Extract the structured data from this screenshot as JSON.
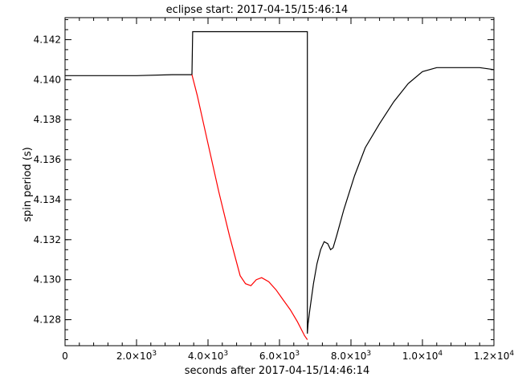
{
  "chart_data": {
    "type": "line",
    "title": "eclipse start: 2017-04-15/15:46:14",
    "xlabel": "seconds after 2017-04-15/14:46:14",
    "ylabel": "spin period (s)",
    "xlim": [
      0,
      12000
    ],
    "ylim": [
      4.1267,
      4.1431
    ],
    "grid": false,
    "x_ticks": [
      {
        "value": 0,
        "label": "0",
        "exp": ""
      },
      {
        "value": 2000,
        "label": "2.0×10",
        "exp": "3"
      },
      {
        "value": 4000,
        "label": "4.0×10",
        "exp": "3"
      },
      {
        "value": 6000,
        "label": "6.0×10",
        "exp": "3"
      },
      {
        "value": 8000,
        "label": "8.0×10",
        "exp": "3"
      },
      {
        "value": 10000,
        "label": "1.0×10",
        "exp": "4"
      },
      {
        "value": 12000,
        "label": "1.2×10",
        "exp": "4"
      }
    ],
    "y_ticks": [
      {
        "value": 4.128,
        "label": "4.128"
      },
      {
        "value": 4.13,
        "label": "4.130"
      },
      {
        "value": 4.132,
        "label": "4.132"
      },
      {
        "value": 4.134,
        "label": "4.134"
      },
      {
        "value": 4.136,
        "label": "4.136"
      },
      {
        "value": 4.138,
        "label": "4.138"
      },
      {
        "value": 4.14,
        "label": "4.140"
      },
      {
        "value": 4.142,
        "label": "4.142"
      }
    ],
    "series": [
      {
        "color": "#000000",
        "points": [
          [
            0,
            4.1402
          ],
          [
            1000,
            4.1402
          ],
          [
            2000,
            4.1402
          ],
          [
            3000,
            4.14025
          ],
          [
            3550,
            4.14025
          ],
          [
            3570,
            4.1424
          ],
          [
            6780,
            4.1424
          ],
          [
            6780,
            4.1273
          ],
          [
            6800,
            4.1278
          ],
          [
            6850,
            4.1285
          ],
          [
            6950,
            4.1298
          ],
          [
            7050,
            4.1308
          ],
          [
            7150,
            4.1315
          ],
          [
            7250,
            4.1319
          ],
          [
            7350,
            4.1318
          ],
          [
            7430,
            4.1315
          ],
          [
            7500,
            4.1316
          ],
          [
            7600,
            4.1322
          ],
          [
            7800,
            4.1335
          ],
          [
            8100,
            4.1352
          ],
          [
            8400,
            4.1366
          ],
          [
            8800,
            4.1378
          ],
          [
            9200,
            4.1389
          ],
          [
            9600,
            4.1398
          ],
          [
            10000,
            4.1404
          ],
          [
            10400,
            4.1406
          ],
          [
            10800,
            4.1406
          ],
          [
            11200,
            4.1406
          ],
          [
            11600,
            4.1406
          ],
          [
            12000,
            4.1405
          ]
        ]
      },
      {
        "color": "#ff0000",
        "points": [
          [
            3550,
            4.14025
          ],
          [
            3700,
            4.1392
          ],
          [
            4000,
            4.1368
          ],
          [
            4300,
            4.1344
          ],
          [
            4600,
            4.1322
          ],
          [
            4900,
            4.1302
          ],
          [
            5050,
            4.1298
          ],
          [
            5200,
            4.1297
          ],
          [
            5350,
            4.13
          ],
          [
            5500,
            4.1301
          ],
          [
            5700,
            4.1299
          ],
          [
            5900,
            4.1295
          ],
          [
            6100,
            4.129
          ],
          [
            6300,
            4.1285
          ],
          [
            6500,
            4.1279
          ],
          [
            6700,
            4.1272
          ],
          [
            6780,
            4.127
          ]
        ]
      }
    ]
  }
}
